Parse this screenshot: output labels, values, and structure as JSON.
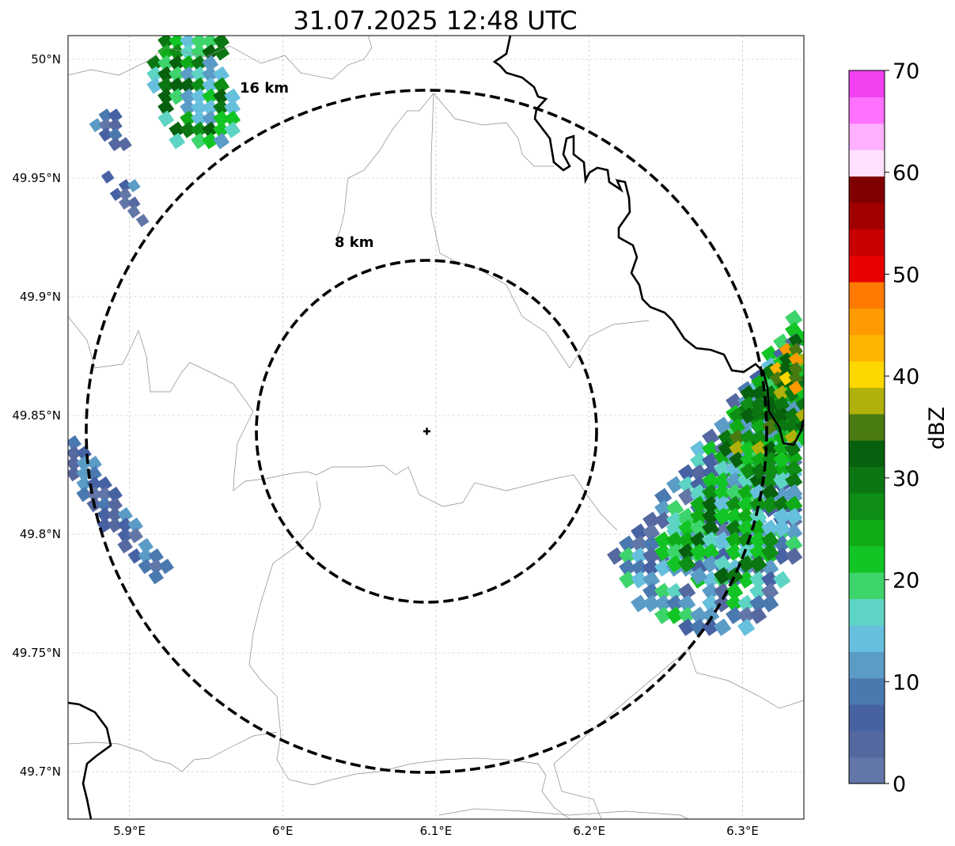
{
  "title": "31.07.2025 12:48 UTC",
  "map": {
    "lon_range": [
      5.86,
      6.34
    ],
    "lat_range": [
      49.68,
      50.01
    ],
    "lon_ticks": [
      {
        "value": 5.9,
        "label": "5.9°E"
      },
      {
        "value": 6.0,
        "label": "6°E"
      },
      {
        "value": 6.1,
        "label": "6.1°E"
      },
      {
        "value": 6.2,
        "label": "6.2°E"
      },
      {
        "value": 6.3,
        "label": "6.3°E"
      }
    ],
    "lat_ticks": [
      {
        "value": 49.7,
        "label": "49.7°N"
      },
      {
        "value": 49.75,
        "label": "49.75°N"
      },
      {
        "value": 49.8,
        "label": "49.8°N"
      },
      {
        "value": 49.85,
        "label": "49.85°N"
      },
      {
        "value": 49.9,
        "label": "49.9°N"
      },
      {
        "value": 49.95,
        "label": "49.95°N"
      },
      {
        "value": 50.0,
        "label": "50°N"
      }
    ],
    "radar_site": {
      "lon": 6.094,
      "lat": 49.843
    },
    "range_rings": [
      {
        "label": "8 km",
        "radius_km": 8
      },
      {
        "label": "16 km",
        "radius_km": 16
      }
    ],
    "gridlines": true
  },
  "colorbar": {
    "label": "dBZ",
    "min": 0,
    "max": 70,
    "ticks": [
      {
        "value": 0,
        "label": "0"
      },
      {
        "value": 10,
        "label": "10"
      },
      {
        "value": 20,
        "label": "20"
      },
      {
        "value": 30,
        "label": "30"
      },
      {
        "value": 40,
        "label": "40"
      },
      {
        "value": 50,
        "label": "50"
      },
      {
        "value": 60,
        "label": "60"
      },
      {
        "value": 70,
        "label": "70"
      }
    ],
    "colors": [
      "#6376a8",
      "#5569a0",
      "#4662a3",
      "#4a79b0",
      "#5a9cc6",
      "#66c0dd",
      "#5ed4c4",
      "#3ed46c",
      "#12c424",
      "#10ac18",
      "#0e8e14",
      "#0b7612",
      "#07600d",
      "#4a7a12",
      "#b0b10a",
      "#ffd700",
      "#ffb400",
      "#ff9a00",
      "#ff7a00",
      "#e80000",
      "#c80000",
      "#a00000",
      "#800000",
      "#ffe0ff",
      "#ffb0ff",
      "#ff70ff",
      "#f040f0"
    ]
  }
}
